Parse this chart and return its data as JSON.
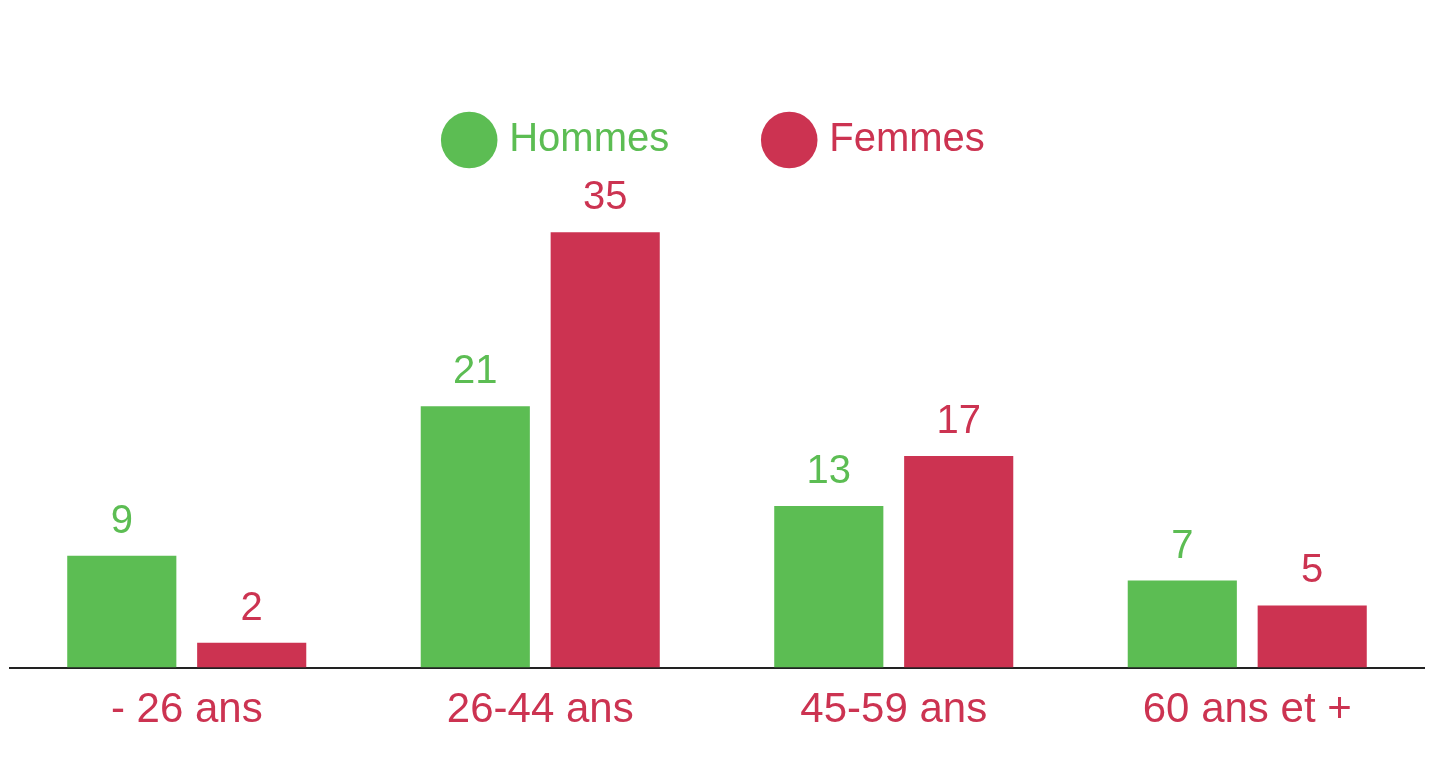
{
  "chart_data": {
    "type": "bar",
    "categories": [
      "- 26 ans",
      "26-44 ans",
      "45-59 ans",
      "60 ans et +"
    ],
    "series": [
      {
        "name": "Hommes",
        "color": "#5cbd53",
        "values": [
          9,
          21,
          13,
          7
        ]
      },
      {
        "name": "Femmes",
        "color": "#cc3351",
        "values": [
          2,
          35,
          17,
          5
        ]
      }
    ],
    "data_labels": true,
    "legend": "top",
    "grid": false,
    "tick_labels": "x"
  }
}
